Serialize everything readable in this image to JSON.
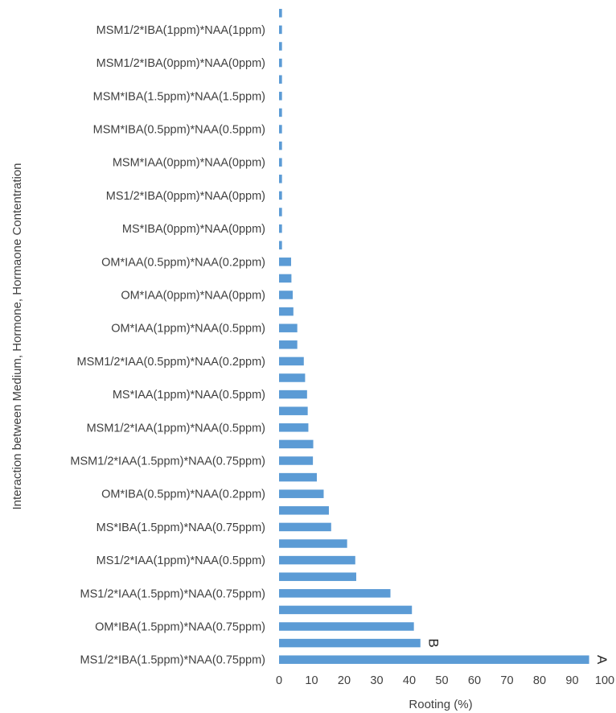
{
  "chart_data": {
    "type": "bar",
    "orientation": "horizontal",
    "xlabel": "Rooting (%)",
    "ylabel": "Interaction between Medium, Hormone, Hormaone Contentration",
    "xlim": [
      0,
      100
    ],
    "x_ticks": [
      0,
      10,
      20,
      30,
      40,
      50,
      60,
      70,
      80,
      90,
      100
    ],
    "grid": false,
    "bar_color": "#5b9bd5",
    "categories": [
      "MS1/2*IBA(1.5ppm)*NAA(0.75ppm)",
      "",
      "OM*IBA(1.5ppm)*NAA(0.75ppm)",
      "",
      "MS1/2*IAA(1.5ppm)*NAA(0.75ppm)",
      "",
      "MS1/2*IAA(1ppm)*NAA(0.5ppm)",
      "",
      "MS*IBA(1.5ppm)*NAA(0.75ppm)",
      "",
      "OM*IBA(0.5ppm)*NAA(0.2ppm)",
      "",
      "MSM1/2*IAA(1.5ppm)*NAA(0.75ppm)",
      "",
      "MSM1/2*IAA(1ppm)*NAA(0.5ppm)",
      "",
      "MS*IAA(1ppm)*NAA(0.5ppm)",
      "",
      "MSM1/2*IAA(0.5ppm)*NAA(0.2ppm)",
      "",
      "OM*IAA(1ppm)*NAA(0.5ppm)",
      "",
      "OM*IAA(0ppm)*NAA(0ppm)",
      "",
      "OM*IAA(0.5ppm)*NAA(0.2ppm)",
      "",
      "MS*IBA(0ppm)*NAA(0ppm)",
      "",
      "MS1/2*IBA(0ppm)*NAA(0ppm)",
      "",
      "MSM*IAA(0ppm)*NAA(0ppm)",
      "",
      "MSM*IBA(0.5ppm)*NAA(0.5ppm)",
      "",
      "MSM*IBA(1.5ppm)*NAA(1.5ppm)",
      "",
      "MSM1/2*IBA(0ppm)*NAA(0ppm)",
      "",
      "MSM1/2*IBA(1ppm)*NAA(1ppm)",
      ""
    ],
    "values": [
      95.2,
      43.4,
      41.4,
      40.8,
      34.2,
      23.7,
      23.4,
      20.9,
      16.0,
      15.3,
      13.7,
      11.6,
      10.4,
      10.5,
      9.0,
      8.8,
      8.6,
      8.0,
      7.6,
      5.6,
      5.6,
      4.4,
      4.2,
      3.8,
      3.7,
      0.9,
      0.9,
      0.9,
      0.9,
      0.9,
      0.9,
      0.9,
      0.9,
      0.9,
      0.9,
      0.9,
      0.9,
      0.9,
      0.9,
      0.9
    ],
    "annotations": [
      {
        "category_index": 0,
        "text": "A"
      },
      {
        "category_index": 1,
        "text": "B"
      }
    ]
  }
}
